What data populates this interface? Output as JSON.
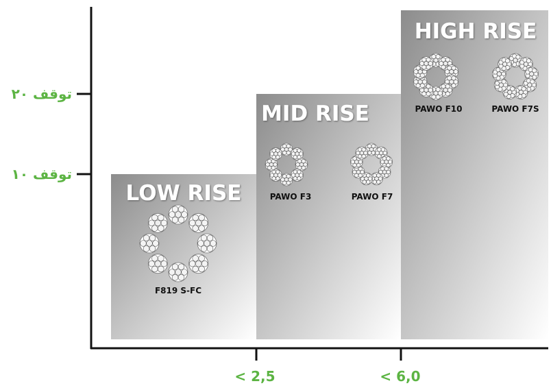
{
  "axis": {
    "y_labels": [
      "۲۰ توقف",
      "۱۰ توقف"
    ],
    "x_labels": [
      "< 2,5",
      "< 6,0"
    ]
  },
  "blocks": [
    {
      "title": "LOW RISE",
      "ropes": [
        "F819 S-FC"
      ]
    },
    {
      "title": "MID RISE",
      "ropes": [
        "PAWO F3",
        "PAWO F7"
      ]
    },
    {
      "title": "HIGH RISE",
      "ropes": [
        "PAWO F10",
        "PAWO F7S"
      ]
    }
  ]
}
